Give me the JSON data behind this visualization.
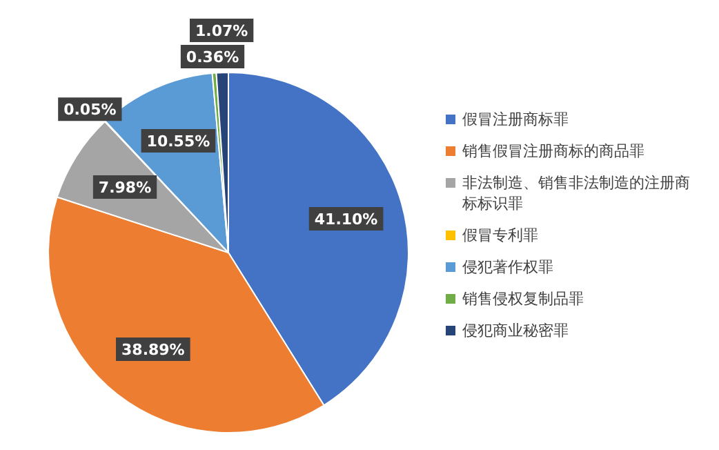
{
  "chart_data": {
    "type": "pie",
    "categories": [
      "假冒注册商标罪",
      "销售假冒注册商标的商品罪",
      "非法制造、销售非法制造的注册商标标识罪",
      "假冒专利罪",
      "侵犯著作权罪",
      "销售侵权复制品罪",
      "侵犯商业秘密罪"
    ],
    "values": [
      41.1,
      38.89,
      7.98,
      0.05,
      10.55,
      0.36,
      1.07
    ],
    "colors": [
      "#4472c4",
      "#ed7d31",
      "#a5a5a5",
      "#ffc000",
      "#5b9bd5",
      "#70ad47",
      "#264478"
    ],
    "value_labels": [
      "41.10%",
      "38.89%",
      "7.98%",
      "0.05%",
      "10.55%",
      "0.36%",
      "1.07%"
    ],
    "legend": "right"
  }
}
